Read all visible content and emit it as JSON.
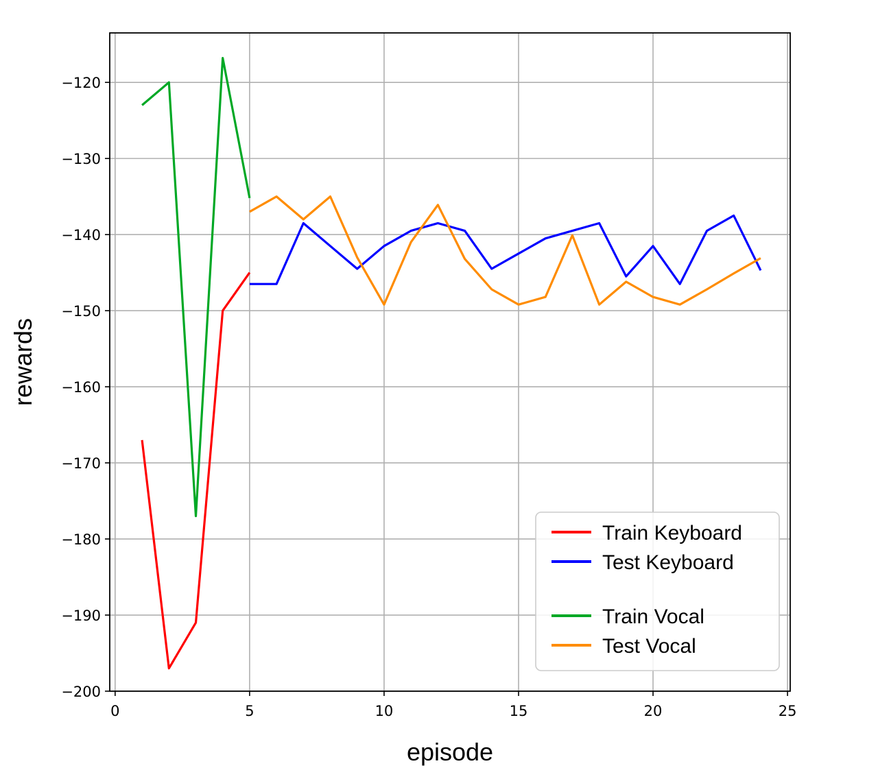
{
  "chart_data": {
    "type": "line",
    "title": "",
    "xlabel": "episode",
    "ylabel": "rewards",
    "xlim": [
      -0.2,
      25.1
    ],
    "ylim": [
      -200,
      -113.5
    ],
    "xticks": [
      0,
      5,
      10,
      15,
      20,
      25
    ],
    "yticks": [
      -120,
      -130,
      -140,
      -150,
      -160,
      -170,
      -180,
      -190,
      -200
    ],
    "xtick_labels": [
      "0",
      "5",
      "10",
      "15",
      "20",
      "25"
    ],
    "ytick_labels": [
      "−120",
      "−130",
      "−140",
      "−150",
      "−160",
      "−170",
      "−180",
      "−190",
      "−200"
    ],
    "grid": true,
    "legend_position": "bottom-right",
    "series": [
      {
        "name": "Train Keyboard",
        "color": "#ff0000",
        "x": [
          1,
          2,
          3,
          4,
          5
        ],
        "y": [
          -167,
          -197,
          -191,
          -150,
          -145
        ]
      },
      {
        "name": "Test Keyboard",
        "color": "#0000ff",
        "x": [
          5,
          6,
          7,
          8,
          9,
          10,
          11,
          12,
          13,
          14,
          15,
          16,
          17,
          18,
          19,
          20,
          21,
          22,
          23,
          24
        ],
        "y": [
          -146.5,
          -146.5,
          -138.5,
          -141.5,
          -144.5,
          -141.5,
          -139.5,
          -138.5,
          -139.5,
          -144.5,
          -142.5,
          -140.5,
          -139.5,
          -138.5,
          -145.5,
          -141.5,
          -146.5,
          -139.5,
          -137.5,
          -144.7
        ]
      },
      {
        "name": "Train Vocal",
        "color": "#00a825",
        "x": [
          1,
          2,
          3,
          4,
          5
        ],
        "y": [
          -123,
          -120,
          -177,
          -116.8,
          -135.2
        ]
      },
      {
        "name": "Test Vocal",
        "color": "#ff8c00",
        "x": [
          5,
          6,
          7,
          8,
          9,
          10,
          11,
          12,
          13,
          14,
          15,
          16,
          17,
          18,
          19,
          20,
          21,
          22,
          23,
          24
        ],
        "y": [
          -137,
          -135,
          -138,
          -135,
          -143,
          -149.2,
          -141,
          -136.1,
          -143.2,
          -147.2,
          -149.2,
          -148.2,
          -140.1,
          -149.2,
          -146.2,
          -148.2,
          -149.2,
          -147.2,
          -145.1,
          -143.1
        ]
      }
    ]
  }
}
